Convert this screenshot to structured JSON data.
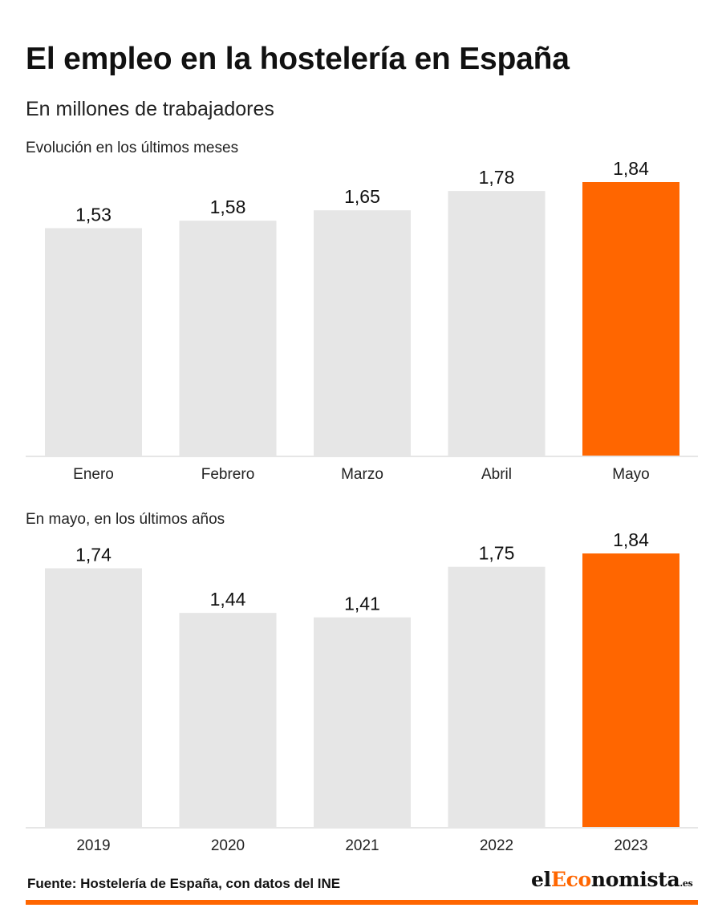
{
  "header": {
    "title": "El empleo en la hostelería en España",
    "subtitle": "En millones de trabajadores"
  },
  "colors": {
    "base_bar": "#e6e6e6",
    "highlight_bar": "#ff6600",
    "axis_line": "#e6e6e6"
  },
  "chart_data": [
    {
      "type": "bar",
      "title": "Evolución en los últimos meses",
      "categories": [
        "Enero",
        "Febrero",
        "Marzo",
        "Abril",
        "Mayo"
      ],
      "values": [
        1.53,
        1.58,
        1.65,
        1.78,
        1.84
      ],
      "value_labels": [
        "1,53",
        "1,58",
        "1,65",
        "1,78",
        "1,84"
      ],
      "highlight_index": 4,
      "ylim": [
        0,
        1.84
      ],
      "grid": false
    },
    {
      "type": "bar",
      "title": "En mayo, en los últimos años",
      "categories": [
        "2019",
        "2020",
        "2021",
        "2022",
        "2023"
      ],
      "values": [
        1.74,
        1.44,
        1.41,
        1.75,
        1.84
      ],
      "value_labels": [
        "1,74",
        "1,44",
        "1,41",
        "1,75",
        "1,84"
      ],
      "highlight_index": 4,
      "ylim": [
        0,
        1.84
      ],
      "grid": false
    }
  ],
  "footer": {
    "source": "Fuente: Hostelería de España, con datos del INE",
    "logo_text": "elEconomista.es",
    "logo_parts": {
      "pre": "el",
      "accent": "Eco",
      "post": "nomista",
      "tld": ".es"
    }
  }
}
